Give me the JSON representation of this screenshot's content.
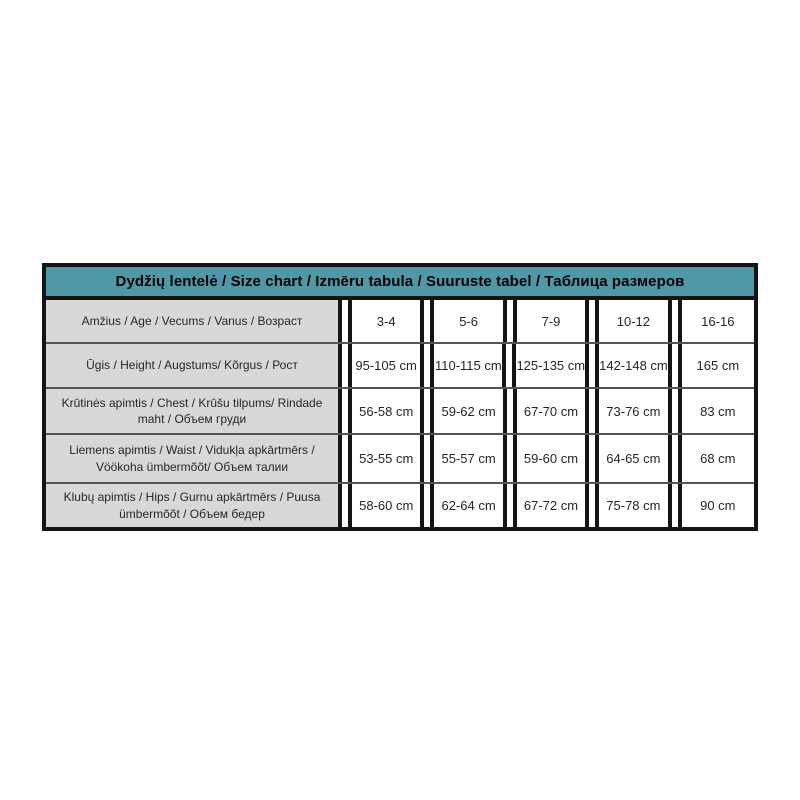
{
  "page": {
    "background": "#ffffff"
  },
  "colors": {
    "header_bg": "#4f98a8",
    "label_bg": "#d8d8d8",
    "border": "#141414",
    "row_separator": "#555555",
    "text": "#262626"
  },
  "chart_data": {
    "type": "table",
    "title": "Dydžių lentelė / Size chart / Izmēru tabula / Suuruste tabel / Таблица размеров",
    "legend_position": "none",
    "rows": [
      {
        "label": "Amžius / Age / Vecums / Vanus / Возраст",
        "values": [
          "3-4",
          "5-6",
          "7-9",
          "10-12",
          "16-16"
        ]
      },
      {
        "label": "Ūgis / Height / Augstums/ Kõrgus / Рост",
        "values": [
          "95-105 cm",
          "110-115 cm",
          "125-135 cm",
          "142-148 cm",
          "165 cm"
        ]
      },
      {
        "label": "Krūtinės apimtis / Chest / Krūšu tilpums/ Rindade maht / Объем груди",
        "values": [
          "56-58 cm",
          "59-62 cm",
          "67-70 cm",
          "73-76 cm",
          "83 cm"
        ]
      },
      {
        "label": "Liemens apimtis / Waist / Vidukļa apkārtmērs / Vöökoha ümbermõõt/ Объем талии",
        "values": [
          "53-55 cm",
          "55-57 cm",
          "59-60 cm",
          "64-65 cm",
          "68 cm"
        ]
      },
      {
        "label": "Klubų apimtis / Hips / Gurnu apkārtmērs / Puusa ümbermõõt / Объем бедер",
        "values": [
          "58-60 cm",
          "62-64 cm",
          "67-72 cm",
          "75-78 cm",
          "90 cm"
        ]
      }
    ]
  }
}
